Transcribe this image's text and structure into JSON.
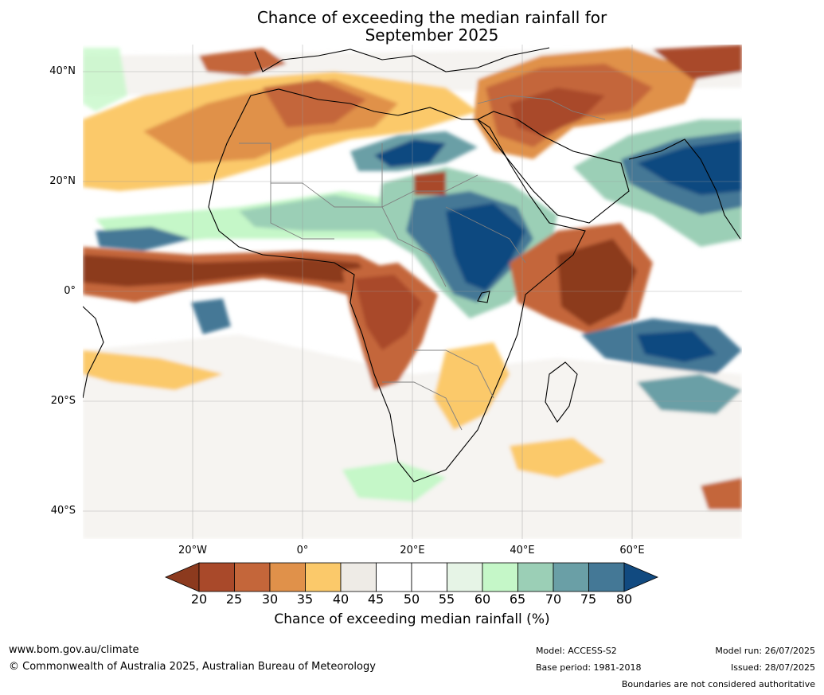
{
  "title": {
    "line1": "Chance of exceeding the median rainfall for",
    "line2": "September 2025"
  },
  "map": {
    "lat_labels": [
      "40°N",
      "20°N",
      "0°",
      "20°S",
      "40°S"
    ],
    "lon_labels": [
      "20°W",
      "0°",
      "20°E",
      "40°E",
      "60°E"
    ]
  },
  "colorbar": {
    "ticks": [
      "20",
      "25",
      "30",
      "35",
      "40",
      "45",
      "50",
      "55",
      "60",
      "65",
      "70",
      "75",
      "80"
    ],
    "colors": [
      "#8c3a1e",
      "#a9492a",
      "#c4663a",
      "#e0914a",
      "#fbc96a",
      "#eeebe6",
      "#ffffff",
      "#ffffff",
      "#e6f4e6",
      "#c5f7c8",
      "#9bcfb6",
      "#6a9fa6",
      "#447896",
      "#114a80"
    ],
    "label": "Chance of exceeding median rainfall (%)"
  },
  "footer": {
    "site": "www.bom.gov.au/climate",
    "copyright": "© Commonwealth of Australia 2025, Australian Bureau of Meteorology",
    "model": "Model: ACCESS-S2",
    "base_period": "Base period: 1981-2018",
    "model_run": "Model run: 26/07/2025",
    "issued": "Issued: 28/07/2025",
    "boundaries": "Boundaries are not considered authoritative"
  }
}
